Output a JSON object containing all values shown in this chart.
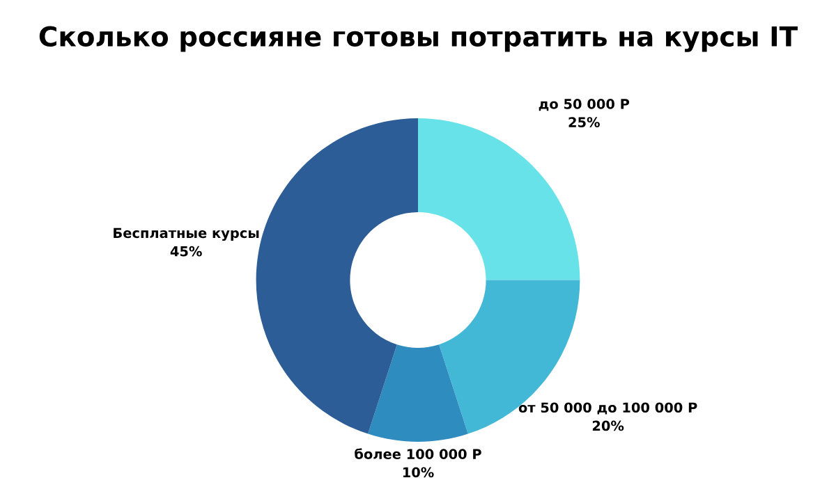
{
  "chart_data": {
    "type": "donut",
    "title": "Сколько россияне готовы потратить на курсы IT",
    "categories": [
      "до 50 000 Р",
      "от 50 000 до 100 000 Р",
      "более 100 000 Р",
      "Бесплатные курсы"
    ],
    "values": [
      25,
      20,
      10,
      45
    ],
    "value_labels": [
      "25%",
      "20%",
      "10%",
      "45%"
    ],
    "colors": [
      "#66e2e8",
      "#43b8d6",
      "#2e8cbf",
      "#2c5d96"
    ]
  }
}
